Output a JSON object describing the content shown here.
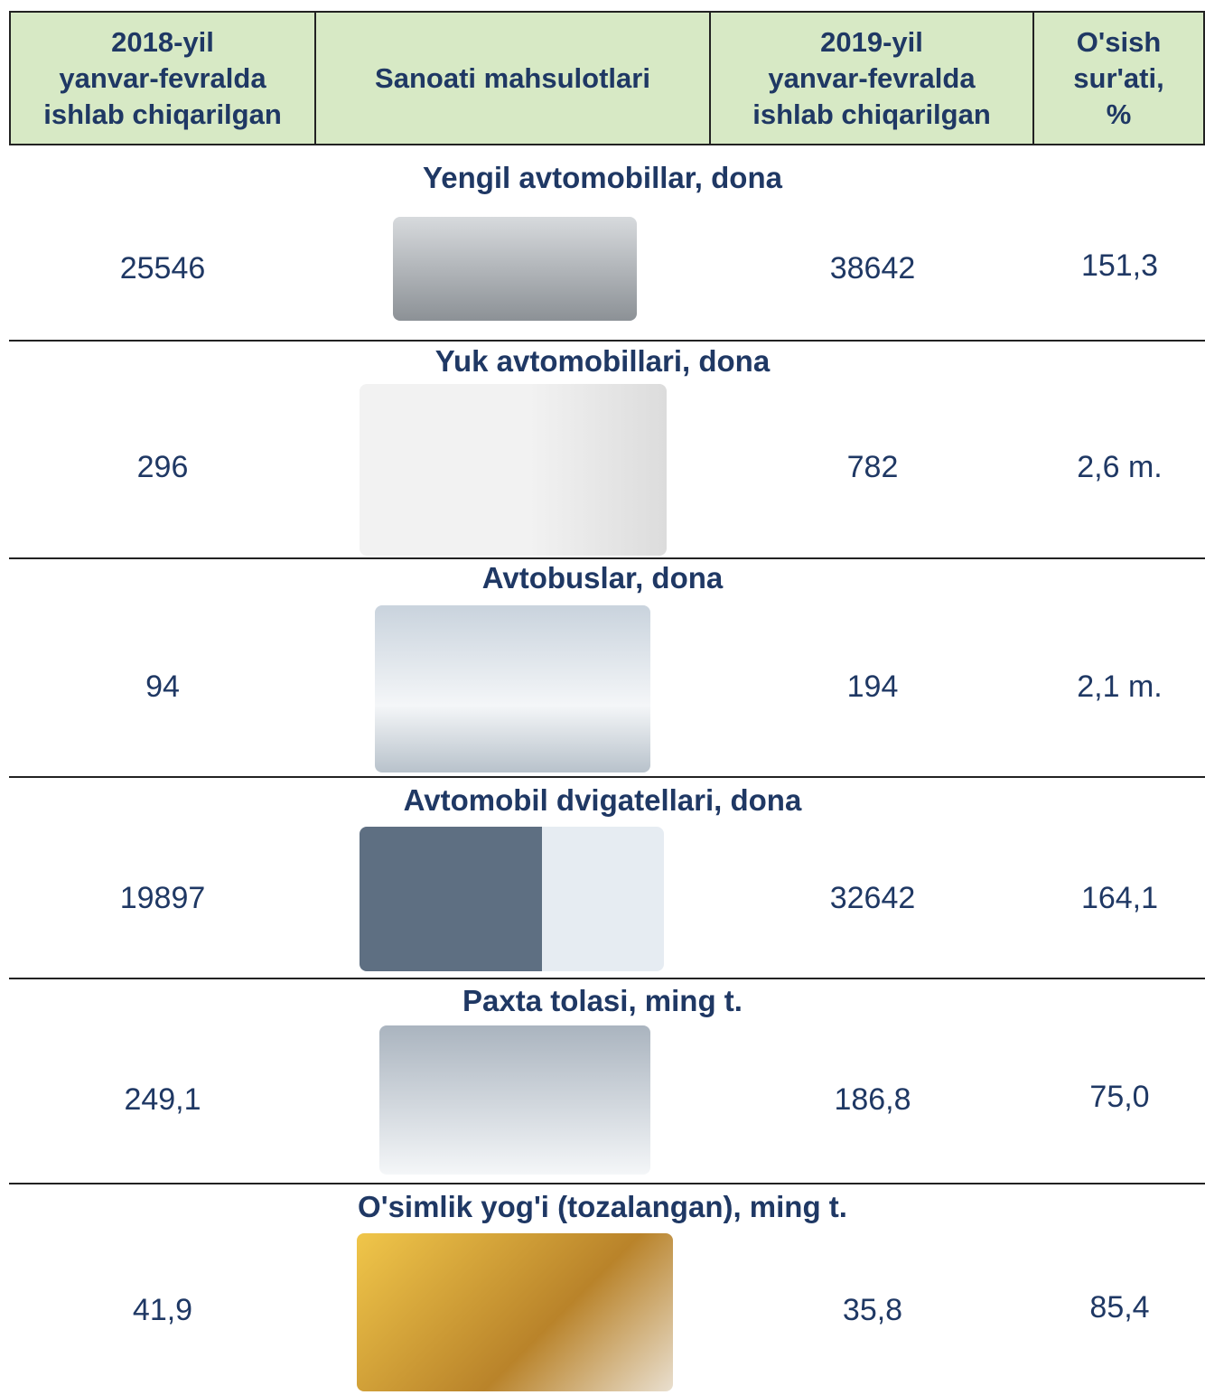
{
  "header": {
    "columns": [
      [
        "2018-yil",
        "yanvar-fevralda",
        "ishlab chiqarilgan"
      ],
      [
        "Sanoati mahsulotlari"
      ],
      [
        "2019-yil",
        "yanvar-fevralda",
        "ishlab chiqarilgan"
      ],
      [
        "O'sish",
        "sur'ati,",
        "%"
      ]
    ]
  },
  "table": {
    "rows": [
      {
        "title": "Yengil avtomobillar, dona",
        "y2018": "25546",
        "y2019": "38642",
        "growth": "151,3"
      },
      {
        "title": "Yuk avtomobillari, dona",
        "y2018": "296",
        "y2019": "782",
        "growth": "2,6 m."
      },
      {
        "title": "Avtobuslar, dona",
        "y2018": "94",
        "y2019": "194",
        "growth": "2,1 m."
      },
      {
        "title": "Avtomobil dvigatellari, dona",
        "y2018": "19897",
        "y2019": "32642",
        "growth": "164,1"
      },
      {
        "title": "Paxta tolasi, ming t.",
        "y2018": "249,1",
        "y2019": "186,8",
        "growth": "75,0"
      },
      {
        "title": "O'simlik yog'i (tozalangan), ming t.",
        "y2018": "41,9",
        "y2019": "35,8",
        "growth": "85,4"
      }
    ]
  }
}
